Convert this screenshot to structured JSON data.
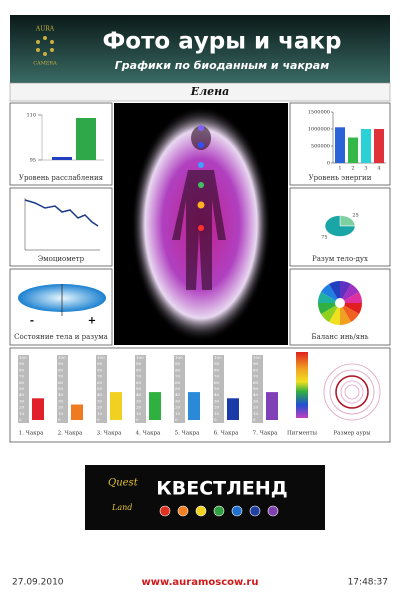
{
  "header": {
    "logo_top": "AURA",
    "logo_bottom": "CAMERA",
    "title": "Фото ауры и чакр",
    "subtitle": "Графики по биоданным и чакрам",
    "name": "Елена"
  },
  "relaxation": {
    "label": "Уровень расслабления",
    "ylim": [
      95,
      110
    ],
    "yticks": [
      95,
      110
    ],
    "values": [
      96,
      109
    ],
    "colors": [
      "#1f3fbf",
      "#2fa84a"
    ]
  },
  "emotiometer": {
    "label": "Эмоциометр"
  },
  "body_mind": {
    "label": "Состояние тела и разума",
    "minus": "-",
    "plus": "+"
  },
  "energy": {
    "label": "Уровень энергии",
    "ylim": [
      0,
      1500000
    ],
    "yticks": [
      0,
      500000,
      1000000,
      1500000
    ],
    "categories": [
      "1",
      "2",
      "3",
      "4"
    ],
    "values": [
      1050000,
      750000,
      1000000,
      1000000
    ],
    "colors": [
      "#2a62d8",
      "#35b84a",
      "#2ad2d8",
      "#e0303a"
    ]
  },
  "mind_body_spirit": {
    "label": "Разум тело-дух",
    "values": [
      25,
      75
    ],
    "colors": [
      "#7fd0a0",
      "#1aa6a6"
    ]
  },
  "yin_yang": {
    "label": "Баланс инь/янь"
  },
  "chakras": {
    "ylim": [
      0,
      100
    ],
    "yticks": [
      0,
      10,
      20,
      30,
      40,
      50,
      60,
      70,
      80,
      90,
      100
    ],
    "labels": [
      "1. Чакра",
      "2. Чакра",
      "3. Чакра",
      "4. Чакра",
      "5. Чакра",
      "6. Чакра",
      "7. Чакра"
    ],
    "values": [
      35,
      25,
      45,
      45,
      45,
      35,
      45
    ],
    "colors": [
      "#e0202a",
      "#f07a20",
      "#f0d020",
      "#30b040",
      "#2a8ad8",
      "#1a3aa8",
      "#8040b8"
    ],
    "pigments": "Пигменты",
    "aura_size": "Размер ауры"
  },
  "logo": {
    "quest": "Quest",
    "land": "Land",
    "brand": "КВЕСТЛЕНД"
  },
  "footer": {
    "date": "27.09.2010",
    "url": "www.auramoscow.ru",
    "time": "17:48:37"
  }
}
